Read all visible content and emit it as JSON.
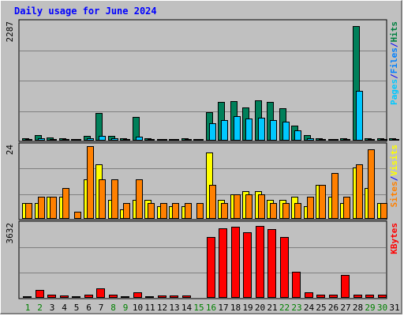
{
  "chart_data": {
    "type": "bar",
    "title": "Daily usage for June 2024",
    "categories": [
      "1",
      "2",
      "3",
      "4",
      "5",
      "6",
      "7",
      "8",
      "9",
      "10",
      "11",
      "12",
      "13",
      "14",
      "15",
      "16",
      "17",
      "18",
      "19",
      "20",
      "21",
      "22",
      "23",
      "24",
      "25",
      "26",
      "27",
      "28",
      "29",
      "30",
      "31"
    ],
    "weekend_days": [
      1,
      2,
      8,
      9,
      15,
      16,
      22,
      23,
      29,
      30
    ],
    "panels": [
      {
        "id": "hits",
        "max_label": "2287",
        "ylim": [
          0,
          2287
        ],
        "legend": [
          {
            "label": "Pages",
            "color": "#00c8ff"
          },
          {
            "label": "/",
            "color": "#0000ff"
          },
          {
            "label": "Files",
            "color": "#0080ff"
          },
          {
            "label": "/",
            "color": "#0000ff"
          },
          {
            "label": "Hits",
            "color": "#008040"
          }
        ],
        "series": [
          {
            "name": "Hits",
            "color": "#00805a",
            "values": [
              30,
              90,
              45,
              25,
              15,
              70,
              520,
              80,
              35,
              450,
              35,
              15,
              20,
              25,
              20,
              540,
              740,
              750,
              640,
              780,
              740,
              620,
              280,
              90,
              25,
              20,
              25,
              2230,
              30,
              30,
              35
            ]
          },
          {
            "name": "Files",
            "color": "#00c8ff",
            "values": [
              15,
              25,
              15,
              15,
              10,
              25,
              80,
              30,
              15,
              60,
              15,
              10,
              10,
              10,
              10,
              330,
              380,
              470,
              410,
              440,
              380,
              350,
              180,
              30,
              15,
              10,
              15,
              960,
              15,
              15,
              15
            ]
          }
        ]
      },
      {
        "id": "visits",
        "max_label": "24",
        "ylim": [
          0,
          24
        ],
        "legend": [
          {
            "label": "Sites",
            "color": "#ff8000"
          },
          {
            "label": "/",
            "color": "#0000ff"
          },
          {
            "label": "Visits",
            "color": "#ffff00"
          }
        ],
        "series": [
          {
            "name": "Visits",
            "color": "#ffff00",
            "values": [
              5,
              5,
              7,
              7,
              0,
              13,
              18,
              6,
              3,
              6,
              6,
              4,
              4,
              4,
              0,
              22,
              6,
              8,
              9,
              9,
              6,
              6,
              7,
              4,
              11,
              7,
              5,
              17,
              10,
              5,
              0
            ]
          },
          {
            "name": "Sites",
            "color": "#ff8000",
            "values": [
              5,
              7,
              7,
              10,
              2,
              24,
              13,
              13,
              5,
              13,
              5,
              5,
              5,
              5,
              5,
              11,
              5,
              8,
              8,
              8,
              5,
              5,
              5,
              7,
              11,
              15,
              7,
              18,
              23,
              5,
              0
            ]
          }
        ]
      },
      {
        "id": "kbytes",
        "max_label": "3632",
        "ylim": [
          0,
          3632
        ],
        "legend": [
          {
            "label": "KBytes",
            "color": "#ff0000"
          }
        ],
        "series": [
          {
            "name": "KBytes",
            "color": "#ff0000",
            "values": [
              30,
              350,
              130,
              70,
              30,
              130,
              420,
              130,
              30,
              250,
              50,
              80,
              80,
              60,
              0,
              3000,
              3450,
              3530,
              3250,
              3570,
              3380,
              2990,
              1280,
              250,
              110,
              120,
              1110,
              110,
              110,
              110,
              0
            ]
          }
        ]
      }
    ]
  }
}
